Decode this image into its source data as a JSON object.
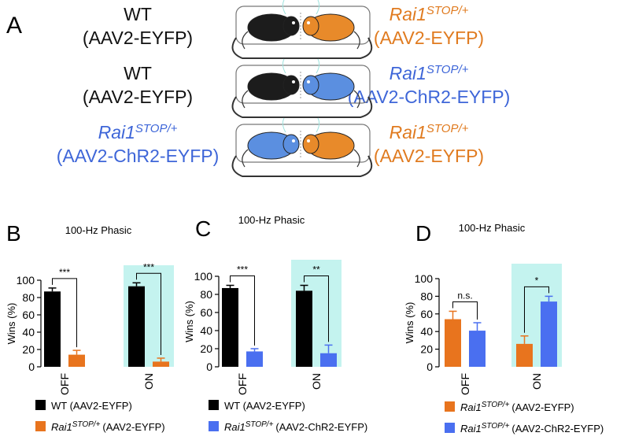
{
  "panel_a": {
    "label": "A",
    "rows": [
      {
        "left": {
          "parts": [
            "WT"
          ],
          "line2": "(AAV2-EYFP)",
          "color": "#111111"
        },
        "right": {
          "parts": [
            "Rai1",
            "STOP/+"
          ],
          "line2": "(AAV2-EYFP)",
          "color": "#e07b20"
        },
        "mice": [
          "#1c1c1c",
          "#e88a2a"
        ]
      },
      {
        "left": {
          "parts": [
            "WT"
          ],
          "line2": "(AAV2-EYFP)",
          "color": "#111111"
        },
        "right": {
          "parts": [
            "Rai1",
            "STOP/+"
          ],
          "line2": "(AAV2-ChR2-EYFP)",
          "color": "#3e66d8"
        },
        "mice": [
          "#1c1c1c",
          "#5b8fe0"
        ]
      },
      {
        "left": {
          "parts": [
            "Rai1",
            "STOP/+"
          ],
          "line2": "(AAV2-ChR2-EYFP)",
          "color": "#3e66d8"
        },
        "right": {
          "parts": [
            "Rai1",
            "STOP/+"
          ],
          "line2": "(AAV2-EYFP)",
          "color": "#e07b20"
        },
        "mice": [
          "#5b8fe0",
          "#e88a2a"
        ]
      }
    ]
  },
  "chart_data": [
    {
      "type": "bar",
      "panel_label": "B",
      "title": "100-Hz Phasic",
      "ylabel": "Wins (%)",
      "categories": [
        "OFF",
        "ON"
      ],
      "series": [
        {
          "name": [
            "WT (AAV2-EYFP)"
          ],
          "color": "#000000",
          "values": [
            87,
            93
          ],
          "errors": [
            4,
            4
          ]
        },
        {
          "name": [
            "Rai1",
            "STOP/+",
            "(AAV2-EYFP)"
          ],
          "color": "#e8741e",
          "values": [
            14,
            6
          ],
          "errors": [
            5,
            4
          ]
        }
      ],
      "significance": [
        {
          "category": 0,
          "label": "***"
        },
        {
          "category": 1,
          "label": "***"
        }
      ],
      "highlight_category": 1,
      "highlight_color": "#c4f3ef",
      "ylim": [
        0,
        100
      ],
      "yticks": [
        0,
        20,
        40,
        60,
        80,
        100
      ]
    },
    {
      "type": "bar",
      "panel_label": "C",
      "title": "100-Hz Phasic",
      "ylabel": "Wins (%)",
      "categories": [
        "OFF",
        "ON"
      ],
      "series": [
        {
          "name": [
            "WT (AAV2-EYFP)"
          ],
          "color": "#000000",
          "values": [
            87,
            84
          ],
          "errors": [
            3,
            6
          ]
        },
        {
          "name": [
            "Rai1",
            "STOP/+",
            "(AAV2-ChR2-EYFP)"
          ],
          "color": "#4a6ff0",
          "values": [
            17,
            15
          ],
          "errors": [
            3,
            9
          ]
        }
      ],
      "significance": [
        {
          "category": 0,
          "label": "***"
        },
        {
          "category": 1,
          "label": "**"
        }
      ],
      "highlight_category": 1,
      "highlight_color": "#c4f3ef",
      "ylim": [
        0,
        100
      ],
      "yticks": [
        0,
        20,
        40,
        60,
        80,
        100
      ]
    },
    {
      "type": "bar",
      "panel_label": "D",
      "title": "100-Hz Phasic",
      "ylabel": "Wins (%)",
      "categories": [
        "OFF",
        "ON"
      ],
      "series": [
        {
          "name": [
            "Rai1",
            "STOP/+",
            "(AAV2-EYFP)"
          ],
          "color": "#e8741e",
          "values": [
            54,
            26
          ],
          "errors": [
            9,
            9
          ]
        },
        {
          "name": [
            "Rai1",
            "STOP/+",
            "(AAV2-ChR2-EYFP)"
          ],
          "color": "#4a6ff0",
          "values": [
            41,
            74
          ],
          "errors": [
            9,
            6
          ]
        }
      ],
      "significance": [
        {
          "category": 0,
          "label": "n.s."
        },
        {
          "category": 1,
          "label": "*"
        }
      ],
      "highlight_category": 1,
      "highlight_color": "#c4f3ef",
      "ylim": [
        0,
        100
      ],
      "yticks": [
        0,
        20,
        40,
        60,
        80,
        100
      ]
    }
  ]
}
